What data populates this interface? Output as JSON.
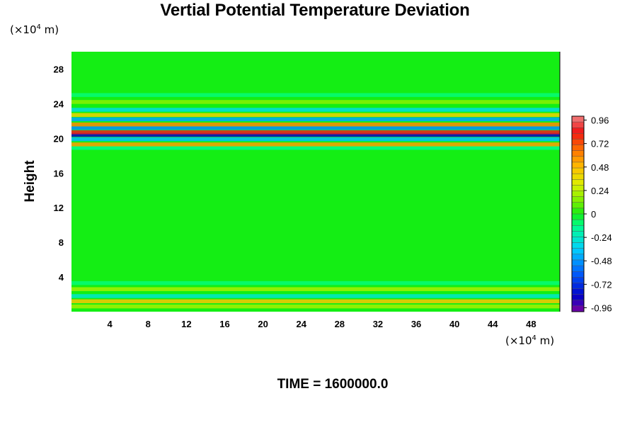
{
  "chart_data": {
    "type": "heatmap",
    "title": "Vertial Potential Temperature Deviation",
    "ylabel": "Height",
    "xlabel": "",
    "x_unit": {
      "prefix": "(×10",
      "exp": "4",
      "suffix": " m)"
    },
    "y_unit": {
      "prefix": "(×10",
      "exp": "4",
      "suffix": " m)"
    },
    "xlim": [
      0,
      51
    ],
    "ylim": [
      0,
      30
    ],
    "x_ticks": [
      4,
      8,
      12,
      16,
      20,
      24,
      28,
      32,
      36,
      40,
      44,
      48
    ],
    "y_ticks": [
      4,
      8,
      12,
      16,
      20,
      24,
      28
    ],
    "colorbar": {
      "range": [
        -1.0,
        1.0
      ],
      "labels": [
        "0.96",
        "0.72",
        "0.48",
        "0.24",
        "0",
        "-0.24",
        "-0.48",
        "-0.72",
        "-0.96"
      ],
      "label_values": [
        0.96,
        0.72,
        0.48,
        0.24,
        0,
        -0.24,
        -0.48,
        -0.72,
        -0.96
      ],
      "levels": 34
    },
    "bands": [
      {
        "y": 0.6,
        "value": 0.2
      },
      {
        "y": 1.2,
        "value": 0.45
      },
      {
        "y": 1.8,
        "value": -0.25
      },
      {
        "y": 2.6,
        "value": 0.2
      },
      {
        "y": 3.3,
        "value": -0.1
      },
      {
        "y": 18.9,
        "value": -0.12
      },
      {
        "y": 19.3,
        "value": 0.55
      },
      {
        "y": 19.9,
        "value": -0.4
      },
      {
        "y": 20.4,
        "value": -0.85
      },
      {
        "y": 20.7,
        "value": 0.85
      },
      {
        "y": 21.2,
        "value": -0.5
      },
      {
        "y": 21.6,
        "value": 0.6
      },
      {
        "y": 22.2,
        "value": -0.45
      },
      {
        "y": 22.7,
        "value": 0.4
      },
      {
        "y": 23.3,
        "value": -0.3
      },
      {
        "y": 24.2,
        "value": 0.15
      },
      {
        "y": 25.0,
        "value": -0.1
      }
    ]
  },
  "footer": {
    "time_label": "TIME = 1600000.0"
  }
}
